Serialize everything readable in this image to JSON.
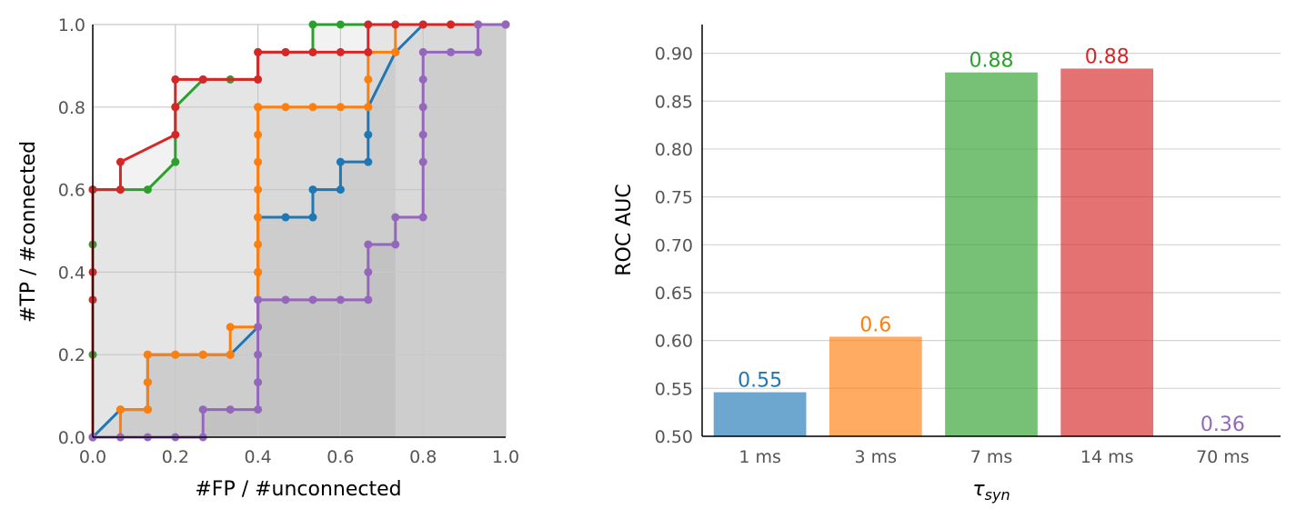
{
  "chart_data": [
    {
      "type": "line",
      "xlabel": "#FP / #unconnected",
      "ylabel": "#TP / #connected",
      "xlim": [
        0,
        1
      ],
      "ylim": [
        0,
        1
      ],
      "xticks": [
        "0.0",
        "0.2",
        "0.4",
        "0.6",
        "0.8",
        "1.0"
      ],
      "yticks": [
        "0.0",
        "0.2",
        "0.4",
        "0.6",
        "0.8",
        "1.0"
      ],
      "grid": true,
      "series": [
        {
          "color": "#1f77b4",
          "x": [
            0,
            0,
            0.067,
            0.133,
            0.133,
            0.133,
            0.2,
            0.267,
            0.333,
            0.4,
            0.4,
            0.4,
            0.467,
            0.533,
            0.533,
            0.6,
            0.6,
            0.667,
            0.667,
            0.667,
            0.733,
            0.8,
            0.867,
            0.933,
            1.0
          ],
          "y": [
            0,
            0,
            0.067,
            0.067,
            0.133,
            0.2,
            0.2,
            0.2,
            0.2,
            0.267,
            0.4,
            0.533,
            0.533,
            0.533,
            0.6,
            0.6,
            0.667,
            0.667,
            0.733,
            0.8,
            0.933,
            1.0,
            1.0,
            1.0,
            1.0
          ]
        },
        {
          "color": "#ff7f0e",
          "x": [
            0.067,
            0.067,
            0.133,
            0.133,
            0.133,
            0.2,
            0.267,
            0.333,
            0.333,
            0.4,
            0.4,
            0.4,
            0.4,
            0.4,
            0.4,
            0.4,
            0.4,
            0.4,
            0.467,
            0.533,
            0.6,
            0.667,
            0.667,
            0.667,
            0.733,
            0.733
          ],
          "y": [
            0,
            0.067,
            0.067,
            0.133,
            0.2,
            0.2,
            0.2,
            0.2,
            0.267,
            0.267,
            0.4,
            0.467,
            0.533,
            0.6,
            0.667,
            0.733,
            0.8,
            0.8,
            0.8,
            0.8,
            0.8,
            0.8,
            0.867,
            0.933,
            0.933,
            1.0
          ]
        },
        {
          "color": "#2ca02c",
          "x": [
            0,
            0,
            0,
            0,
            0,
            0.067,
            0.133,
            0.2,
            0.2,
            0.2,
            0.267,
            0.333,
            0.4,
            0.4,
            0.467,
            0.533,
            0.533,
            0.6,
            0.667,
            0.733,
            0.8,
            0.867,
            0.933,
            1.0
          ],
          "y": [
            0,
            0.2,
            0.467,
            0.6,
            0.6,
            0.6,
            0.6,
            0.667,
            0.8,
            0.8,
            0.867,
            0.867,
            0.867,
            0.933,
            0.933,
            0.933,
            1.0,
            1.0,
            1.0,
            1.0,
            1.0,
            1.0,
            1.0,
            1.0
          ]
        },
        {
          "color": "#d62728",
          "x": [
            0,
            0,
            0,
            0,
            0.067,
            0.067,
            0.2,
            0.2,
            0.2,
            0.267,
            0.4,
            0.4,
            0.467,
            0.533,
            0.6,
            0.667,
            0.667,
            0.733,
            0.8,
            0.867,
            0.933,
            1.0
          ],
          "y": [
            0,
            0.333,
            0.4,
            0.6,
            0.6,
            0.667,
            0.733,
            0.8,
            0.867,
            0.867,
            0.867,
            0.933,
            0.933,
            0.933,
            0.933,
            0.933,
            1.0,
            1.0,
            1.0,
            1.0,
            1.0,
            1.0
          ]
        },
        {
          "color": "#9467bd",
          "x": [
            0,
            0.067,
            0.133,
            0.2,
            0.267,
            0.267,
            0.333,
            0.4,
            0.4,
            0.4,
            0.4,
            0.4,
            0.467,
            0.533,
            0.6,
            0.667,
            0.667,
            0.667,
            0.733,
            0.733,
            0.8,
            0.8,
            0.8,
            0.8,
            0.8,
            0.8,
            0.867,
            0.933,
            0.933,
            1.0
          ],
          "y": [
            0,
            0,
            0,
            0,
            0,
            0.067,
            0.067,
            0.067,
            0.133,
            0.2,
            0.267,
            0.333,
            0.333,
            0.333,
            0.333,
            0.333,
            0.4,
            0.467,
            0.467,
            0.533,
            0.533,
            0.667,
            0.733,
            0.8,
            0.867,
            0.933,
            0.933,
            0.933,
            1.0,
            1.0
          ]
        }
      ]
    },
    {
      "type": "bar",
      "categories": [
        "1 ms",
        "3 ms",
        "7 ms",
        "14 ms",
        "70 ms"
      ],
      "values": [
        0.546,
        0.604,
        0.88,
        0.884,
        0.36
      ],
      "data_labels": [
        "0.55",
        "0.6",
        "0.88",
        "0.88",
        "0.36"
      ],
      "colors": [
        "#1f77b4",
        "#ff7f0e",
        "#2ca02c",
        "#d62728",
        "#9467bd"
      ],
      "xlabel": "τ",
      "xlabel_sub": "syn",
      "ylabel": "ROC AUC",
      "ylim": [
        0.5,
        0.93
      ],
      "yticks": [
        "0.50",
        "0.55",
        "0.60",
        "0.65",
        "0.70",
        "0.75",
        "0.80",
        "0.85",
        "0.90"
      ],
      "grid": true
    }
  ]
}
